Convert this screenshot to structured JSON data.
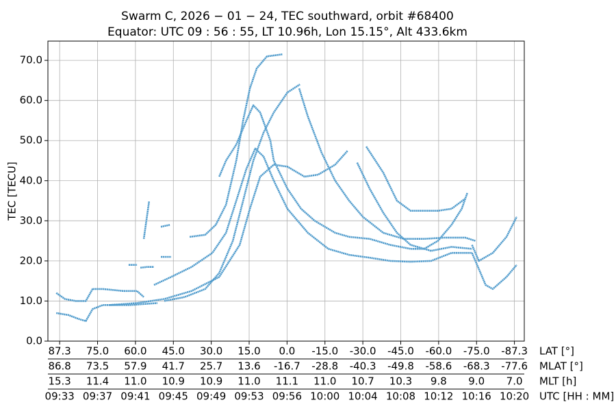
{
  "chart_data": {
    "type": "scatter",
    "title": "Swarm C,  2026 − 01 − 24,  TEC southward,  orbit #68400",
    "subtitle": "Equator:  UTC 09 : 56 : 55,  LT 10.96h,  Lon 15.15°,  Alt 433.6km",
    "y_label": "TEC [TECU]",
    "color": "#4f9bcc",
    "xlim": [
      -0.31,
      12.26
    ],
    "ylim": [
      0,
      74.8
    ],
    "yticks": [
      {
        "value": 0,
        "label": "0.0"
      },
      {
        "value": 10,
        "label": "10.0"
      },
      {
        "value": 20,
        "label": "20.0"
      },
      {
        "value": 30,
        "label": "30.0"
      },
      {
        "value": 40,
        "label": "40.0"
      },
      {
        "value": 50,
        "label": "50.0"
      },
      {
        "value": 60,
        "label": "60.0"
      },
      {
        "value": 70,
        "label": "70.0"
      }
    ],
    "xticks": [
      0,
      1,
      2,
      3,
      4,
      5,
      6,
      7,
      8,
      9,
      10,
      11,
      12
    ],
    "tick_rows": [
      {
        "name": "LAT [°]",
        "labels": [
          "87.3",
          "75.0",
          "60.0",
          "45.0",
          "30.0",
          "15.0",
          "0.0",
          "-15.0",
          "-30.0",
          "-45.0",
          "-60.0",
          "-75.0",
          "-87.3"
        ]
      },
      {
        "name": "MLAT [°]",
        "labels": [
          "86.8",
          "73.5",
          "57.9",
          "41.7",
          "25.7",
          "13.6",
          "-16.7",
          "-28.8",
          "-40.3",
          "-49.8",
          "-58.6",
          "-68.3",
          "-77.6"
        ]
      },
      {
        "name": "MLT [h]",
        "labels": [
          "15.3",
          "11.4",
          "11.0",
          "10.9",
          "10.9",
          "11.0",
          "11.1",
          "11.0",
          "10.7",
          "10.3",
          "9.8",
          "9.0",
          "7.0"
        ]
      },
      {
        "name": "UTC [HH : MM]",
        "labels": [
          "09:33",
          "09:37",
          "09:41",
          "09:45",
          "09:49",
          "09:53",
          "09:56",
          "10:00",
          "10:04",
          "10:08",
          "10:12",
          "10:16",
          "10:20"
        ]
      }
    ],
    "grid": true,
    "series": [
      {
        "x": [
          3.43,
          3.84,
          4.12,
          4.39,
          4.66,
          4.84,
          5.02,
          5.2,
          5.47,
          5.88
        ],
        "values": [
          26,
          26.5,
          29,
          34,
          45,
          55,
          63,
          68,
          71,
          71.5
        ]
      },
      {
        "x": [
          4.21,
          4.39,
          4.66,
          4.93,
          5.11,
          5.29,
          5.56,
          5.65,
          6.01,
          6.37,
          6.73,
          7.27,
          7.64,
          8.18,
          8.72,
          9.26,
          9.62,
          9.98,
          10.34,
          10.61,
          10.76
        ],
        "values": [
          41,
          45,
          49,
          55,
          58.8,
          57,
          50,
          45,
          38,
          33,
          30,
          27,
          26,
          25.5,
          24,
          23,
          23,
          25,
          29,
          33,
          37
        ]
      },
      {
        "x": [
          2.76,
          3.3,
          3.84,
          4.21,
          4.57,
          4.84,
          5.11,
          5.38,
          5.65,
          6.01,
          6.34
        ],
        "values": [
          10,
          11,
          13,
          17,
          25,
          35,
          45,
          52,
          57,
          62,
          64
        ]
      },
      {
        "x": [
          6.32,
          6.55,
          6.91,
          7.27,
          7.64,
          8.0,
          8.54,
          9.08,
          9.62,
          10.16,
          10.7,
          10.97
        ],
        "values": [
          63,
          56,
          47,
          40,
          35,
          31,
          27,
          25.5,
          25.5,
          25.8,
          25.8,
          25
        ]
      },
      {
        "x": [
          2.49,
          2.94,
          3.48,
          4.03,
          4.39,
          4.66,
          4.93,
          5.16,
          5.38,
          5.65,
          6.01,
          6.55,
          7.09,
          7.64,
          8.18,
          8.72,
          9.26,
          9.8,
          10.34,
          10.88
        ],
        "values": [
          14,
          16,
          18.5,
          22,
          27,
          35,
          43,
          48,
          46,
          40,
          33,
          27,
          23,
          21.5,
          20.8,
          20,
          19.8,
          20,
          22,
          22
        ]
      },
      {
        "x": [
          1.32,
          2.04,
          2.76,
          3.48,
          4.21,
          4.75,
          5.02,
          5.29,
          5.65,
          6.01,
          6.46,
          6.82,
          7.27,
          7.6
        ],
        "values": [
          9,
          9.5,
          10.5,
          12.5,
          16,
          24,
          33,
          41,
          44,
          43.5,
          41,
          41.5,
          44,
          47.5
        ]
      },
      {
        "x": [
          7.85,
          8.18,
          8.54,
          8.9,
          9.26,
          9.8,
          10.34,
          10.88
        ],
        "values": [
          44.5,
          38,
          32,
          27,
          24,
          22.5,
          23.5,
          23
        ]
      },
      {
        "x": [
          8.09,
          8.54,
          8.9,
          9.26,
          9.98,
          10.34,
          10.7
        ],
        "values": [
          48.5,
          42,
          35,
          32.5,
          32.5,
          33,
          35.5
        ]
      },
      {
        "x": [
          -0.09,
          0.14,
          0.42,
          0.69,
          0.87,
          1.14,
          1.68,
          2.04,
          2.22
        ],
        "values": [
          12,
          10.5,
          10,
          10,
          13,
          13,
          12.5,
          12.5,
          11
        ]
      },
      {
        "x": [
          -0.09,
          0.23,
          0.51,
          0.69,
          0.87,
          1.14,
          1.86,
          2.58
        ],
        "values": [
          7,
          6.5,
          5.5,
          5,
          8,
          9,
          9,
          9.5
        ]
      },
      {
        "x": [
          10.88,
          11.06,
          11.24,
          11.43,
          11.79,
          12.06
        ],
        "values": [
          22,
          18,
          14,
          13,
          16,
          19
        ]
      },
      {
        "x": [
          10.88,
          11.06,
          11.43,
          11.79,
          12.06
        ],
        "values": [
          24,
          20,
          22,
          26,
          31
        ]
      },
      {
        "x": [
          1.82,
          2.04
        ],
        "values": [
          19,
          19
        ]
      },
      {
        "x": [
          2.13,
          2.31,
          2.49
        ],
        "values": [
          18.3,
          18.5,
          18.5
        ]
      },
      {
        "x": [
          2.67,
          2.94
        ],
        "values": [
          21,
          21
        ]
      },
      {
        "x": [
          2.22,
          2.36
        ],
        "values": [
          25.5,
          34.8
        ]
      },
      {
        "x": [
          2.67,
          2.91
        ],
        "values": [
          28.5,
          29
        ]
      }
    ]
  }
}
